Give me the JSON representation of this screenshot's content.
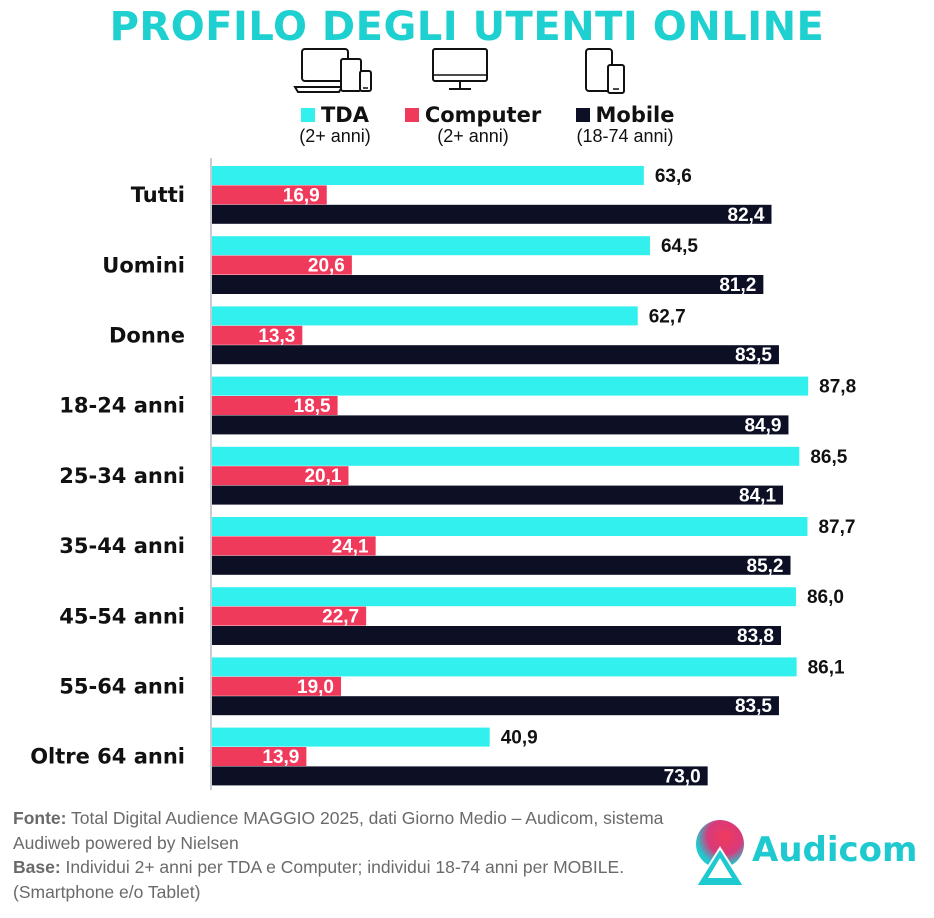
{
  "colors": {
    "tda": "#31f0ee",
    "computer": "#f03a5c",
    "mobile": "#0d0f24",
    "title": "#1fd0d0",
    "axis": "#c9ccd2",
    "brand": "#1fc9d0"
  },
  "icons": {
    "tda": "devices-icon",
    "computer": "desktop-monitor-icon",
    "mobile": "phone-tablet-icon",
    "logo": "audicom-logo-icon"
  },
  "legend": {
    "tda": {
      "label": "TDA",
      "sub": "(2+ anni)"
    },
    "computer": {
      "label": "Computer",
      "sub": "(2+ anni)"
    },
    "mobile": {
      "label": "Mobile",
      "sub": "(18-74 anni)"
    }
  },
  "source": {
    "fonte_label": "Fonte:",
    "fonte_text": " Total Digital Audience MAGGIO 2025, dati Giorno Medio – Audicom, sistema Audiweb powered by Nielsen",
    "base_label": "Base:",
    "base_text": "  Individui 2+ anni per TDA e Computer; individui 18-74 anni per MOBILE.(Smartphone e/o Tablet)"
  },
  "brand": {
    "name": "Audicom"
  },
  "chart_data": {
    "type": "bar",
    "orientation": "horizontal",
    "title": "PROFILO DEGLI UTENTI ONLINE",
    "categories": [
      "Tutti",
      "Uomini",
      "Donne",
      "18-24 anni",
      "25-34 anni",
      "35-44 anni",
      "45-54 anni",
      "55-64 anni",
      "Oltre 64 anni"
    ],
    "series": [
      {
        "name": "TDA",
        "values": [
          63.6,
          64.5,
          62.7,
          87.8,
          86.5,
          87.7,
          86.0,
          86.1,
          40.9
        ],
        "labels": [
          "63,6",
          "64,5",
          "62,7",
          "87,8",
          "86,5",
          "87,7",
          "86,0",
          "86,1",
          "40,9"
        ]
      },
      {
        "name": "Computer",
        "values": [
          16.9,
          20.6,
          13.3,
          18.5,
          20.1,
          24.1,
          22.7,
          19.0,
          13.9
        ],
        "labels": [
          "16,9",
          "20,6",
          "13,3",
          "18,5",
          "20,1",
          "24,1",
          "22,7",
          "19,0",
          "13,9"
        ]
      },
      {
        "name": "Mobile",
        "values": [
          82.4,
          81.2,
          83.5,
          84.9,
          84.1,
          85.2,
          83.8,
          83.5,
          73.0
        ],
        "labels": [
          "82,4",
          "81,2",
          "83,5",
          "84,9",
          "84,1",
          "85,2",
          "83,8",
          "83,5",
          "73,0"
        ]
      }
    ],
    "xlim": [
      0,
      100
    ],
    "grid": false,
    "legend_position": "top"
  }
}
